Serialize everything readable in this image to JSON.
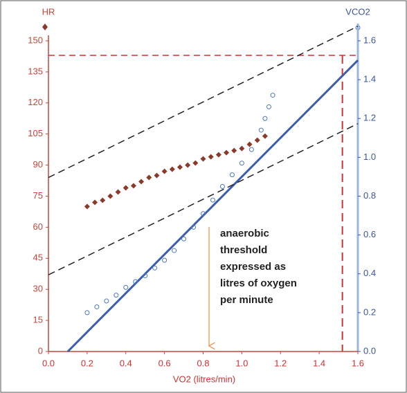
{
  "chart_data": {
    "type": "scatter",
    "x_label": "VO2 (litres/min)",
    "y_label": "HR",
    "y2_label": "VCO2",
    "annotation": [
      "anaerobic",
      "threshold",
      "expressed as",
      "litres of oxygen",
      "per minute"
    ],
    "xlim": [
      0,
      1.6
    ],
    "ylim": [
      0,
      150
    ],
    "y2lim": [
      0,
      1.6
    ],
    "xticks": [
      {
        "value": 0,
        "label": "0.0"
      },
      {
        "value": 0.2,
        "label": "0.2"
      },
      {
        "value": 0.4,
        "label": "0.4"
      },
      {
        "value": 0.6,
        "label": "0.6"
      },
      {
        "value": 0.8,
        "label": "0.8"
      },
      {
        "value": 1.0,
        "label": "1.0"
      },
      {
        "value": 1.2,
        "label": "1.2"
      },
      {
        "value": 1.4,
        "label": "1.4"
      },
      {
        "value": 1.6,
        "label": "1.6"
      }
    ],
    "yticks": [
      0,
      15,
      30,
      45,
      60,
      75,
      90,
      105,
      120,
      135,
      150
    ],
    "y2ticks": [
      {
        "value": 0,
        "label": "0.0"
      },
      {
        "value": 0.2,
        "label": "0.2"
      },
      {
        "value": 0.4,
        "label": "0.4"
      },
      {
        "value": 0.6,
        "label": "0.6"
      },
      {
        "value": 0.8,
        "label": "0.8"
      },
      {
        "value": 1.0,
        "label": "1.0"
      },
      {
        "value": 1.2,
        "label": "1.2"
      },
      {
        "value": 1.4,
        "label": "1.4"
      },
      {
        "value": 1.6,
        "label": "1.6"
      }
    ],
    "series": [
      {
        "name": "HR",
        "color": "#8b3a2a",
        "marker": "diamond",
        "axis": "y",
        "x": [
          0.2,
          0.24,
          0.28,
          0.32,
          0.36,
          0.4,
          0.44,
          0.48,
          0.52,
          0.56,
          0.6,
          0.64,
          0.68,
          0.72,
          0.76,
          0.8,
          0.84,
          0.88,
          0.92,
          0.96,
          1.0,
          1.04,
          1.08,
          1.12
        ],
        "values": [
          70,
          72,
          73,
          75,
          77,
          79,
          80,
          82,
          84,
          85,
          87,
          88,
          89,
          90,
          91,
          93,
          94,
          95,
          96,
          97,
          98,
          100,
          102,
          104
        ]
      },
      {
        "name": "VCO2",
        "color": "#4a78c0",
        "marker": "circle",
        "axis": "y2",
        "x": [
          0.2,
          0.25,
          0.3,
          0.35,
          0.4,
          0.45,
          0.5,
          0.55,
          0.6,
          0.65,
          0.7,
          0.75,
          0.8,
          0.85,
          0.9,
          0.95,
          1.0,
          1.05,
          1.1,
          1.12,
          1.14,
          1.16
        ],
        "values": [
          0.2,
          0.23,
          0.26,
          0.29,
          0.33,
          0.36,
          0.39,
          0.43,
          0.47,
          0.52,
          0.58,
          0.64,
          0.71,
          0.78,
          0.85,
          0.91,
          0.97,
          1.04,
          1.14,
          1.2,
          1.26,
          1.32
        ]
      }
    ],
    "lines": [
      {
        "x": [
          0.1,
          1.6
        ],
        "values": [
          0,
          1.5
        ],
        "axis": "y2",
        "color": "#3a5db0",
        "dash": false
      },
      {
        "x": [
          0,
          1.6
        ],
        "values": [
          84,
          157
        ],
        "axis": "y",
        "color": "#222222",
        "dash": true
      },
      {
        "x": [
          0,
          1.6
        ],
        "values": [
          37,
          110
        ],
        "axis": "y",
        "color": "#222222",
        "dash": true
      }
    ],
    "threshold": {
      "x": 1.52,
      "hr": 143,
      "color": "#d03030"
    }
  }
}
